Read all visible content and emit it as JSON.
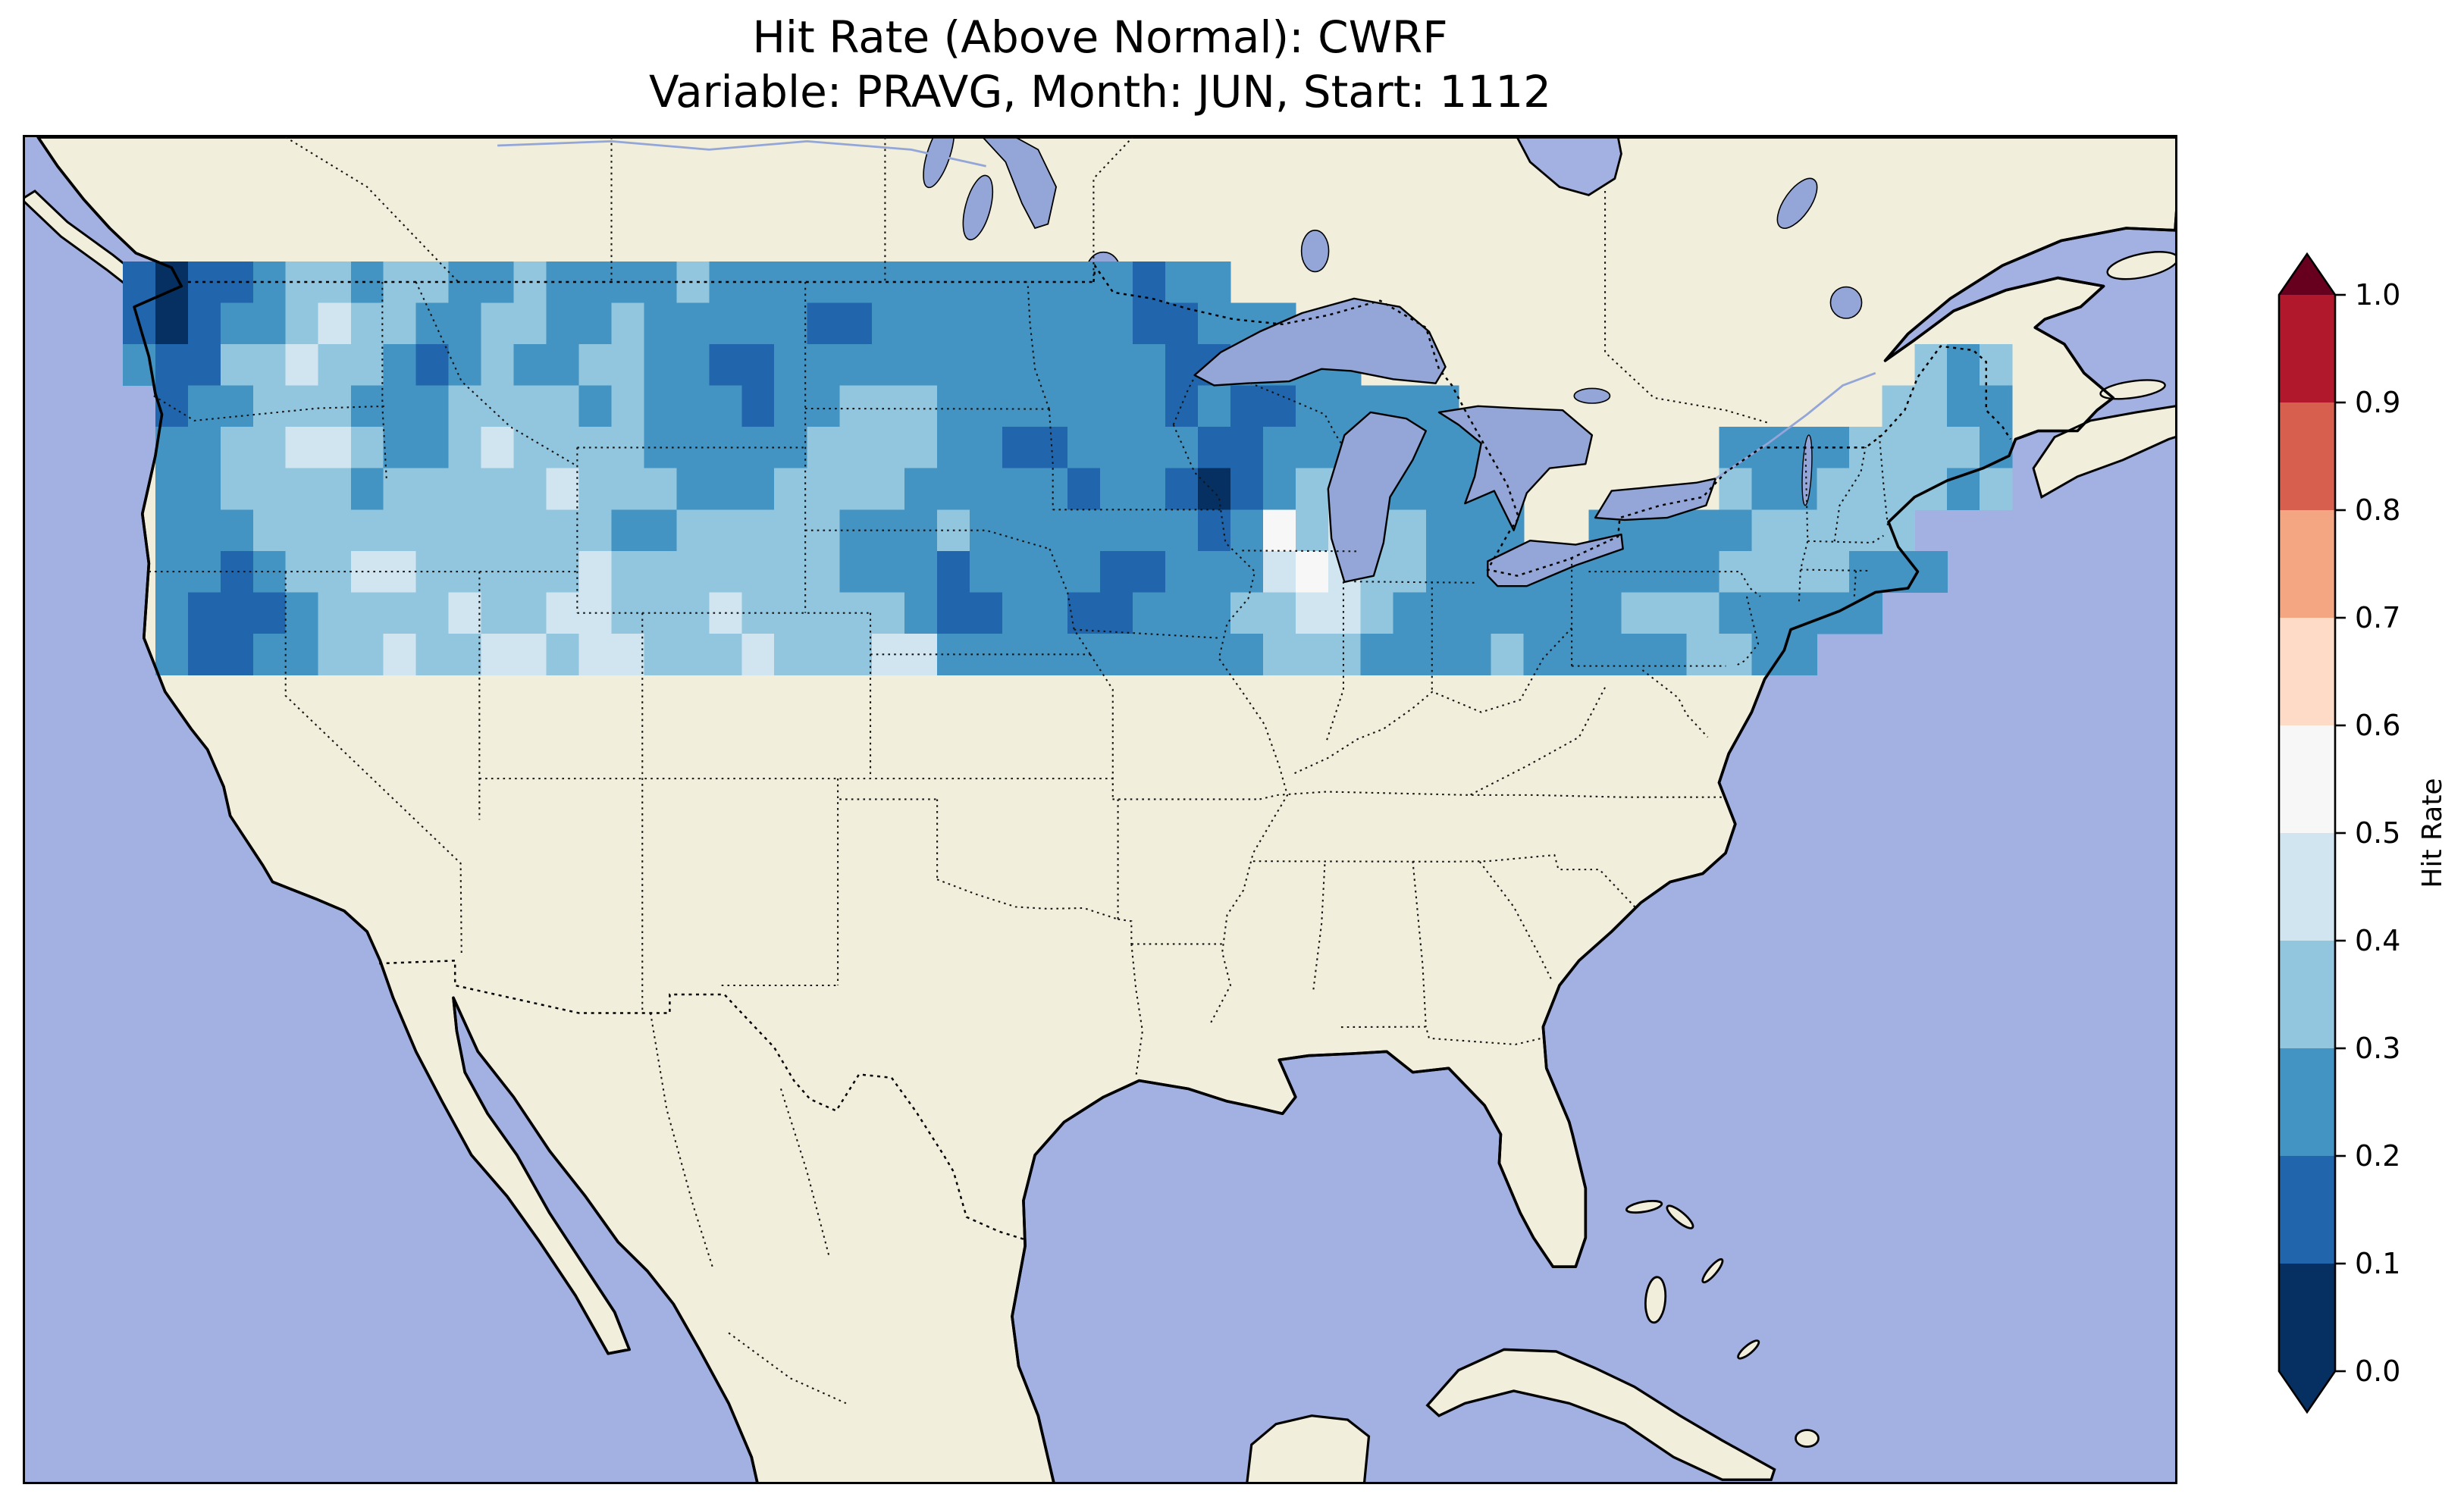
{
  "title": {
    "line1": "Hit Rate (Above Normal): CWRF",
    "line2": "Variable: PRAVG, Month: JUN, Start: 1112"
  },
  "colorbar": {
    "label": "Hit Rate",
    "tick_labels": [
      "1.0",
      "0.9",
      "0.8",
      "0.7",
      "0.6",
      "0.5",
      "0.4",
      "0.3",
      "0.2",
      "0.1",
      "0.0"
    ],
    "segment_colors_top_to_bottom": [
      "#b2182b",
      "#d6604d",
      "#f4a582",
      "#fddbc7",
      "#f7f7f7",
      "#d1e5f0",
      "#92c5de",
      "#4393c3",
      "#2166ac",
      "#053061"
    ],
    "over_color": "#67001f",
    "under_color": "#053061"
  },
  "map_colors": {
    "ocean": "#a2b1e2",
    "land": "#f1eedb",
    "lake": "#93a6d7",
    "coastline": "#000000",
    "border_dots": "#151515"
  },
  "chart_data": {
    "type": "heatmap",
    "title": "Hit Rate (Above Normal): CWRF",
    "subtitle": "Variable: PRAVG, Month: JUN, Start: 1112",
    "model": "CWRF",
    "metric": "Hit Rate (Above Normal)",
    "variable": "PRAVG",
    "month": "JUN",
    "start": "1112",
    "region": "Contiguous United States",
    "colormap": "RdBu_r",
    "vmin": 0.0,
    "vmax": 1.0,
    "bin_width": 0.1,
    "colorbar_extends": "both",
    "value_summary": "Hit rates over CONUS are almost entirely 0.1-0.5 (blue shades), mostly 0.2-0.4; isolated cells reach 0.0-0.1 (dark navy, e.g. Puget Sound, Green Bay) and 0.5-0.6 (near-white, e.g. near Lake Michigan, central Kansas); no warm (red) values appear on the map",
    "cell_bin_colors": [
      "#053061",
      "#2166ac",
      "#4393c3",
      "#92c5de",
      "#d1e5f0",
      "#f7f7f7"
    ],
    "grid": {
      "lon_west": -125,
      "lon_east": -66,
      "lat_north": 49.5,
      "lat_south": 24.5,
      "cell_deg": 1,
      "legend": {
        "0": "0.0-0.1",
        "1": "0.1-0.2",
        "2": "0.2-0.3",
        "3": "0.3-0.4",
        "4": "0.4-0.5",
        "5": "0.5-0.6",
        ".": "outside US / no data"
      },
      "rows_north_to_south": [
        "1011233233223222232222222222222122.........................",
        "101223433223322322222112222222211222.......................",
        "21133433212322332211222222222222112222.................323.",
        ".1223332223333232221223332222222121122222.............3322.",
        ".22334432234333322222333322112222112222222.......222233332.",
        ".223333233333433322233332222212210123322222......322333323.",
        ".222333333333332233333222322222221253433222..2222233333....",
        ".2212334433333433333332221222211222454332222222223333222...",
        ".21112333343344333433333211221122233443222222233322222.....",
        ".21122334334434433343334422222222223332222322222332 2......."
      ]
    }
  }
}
